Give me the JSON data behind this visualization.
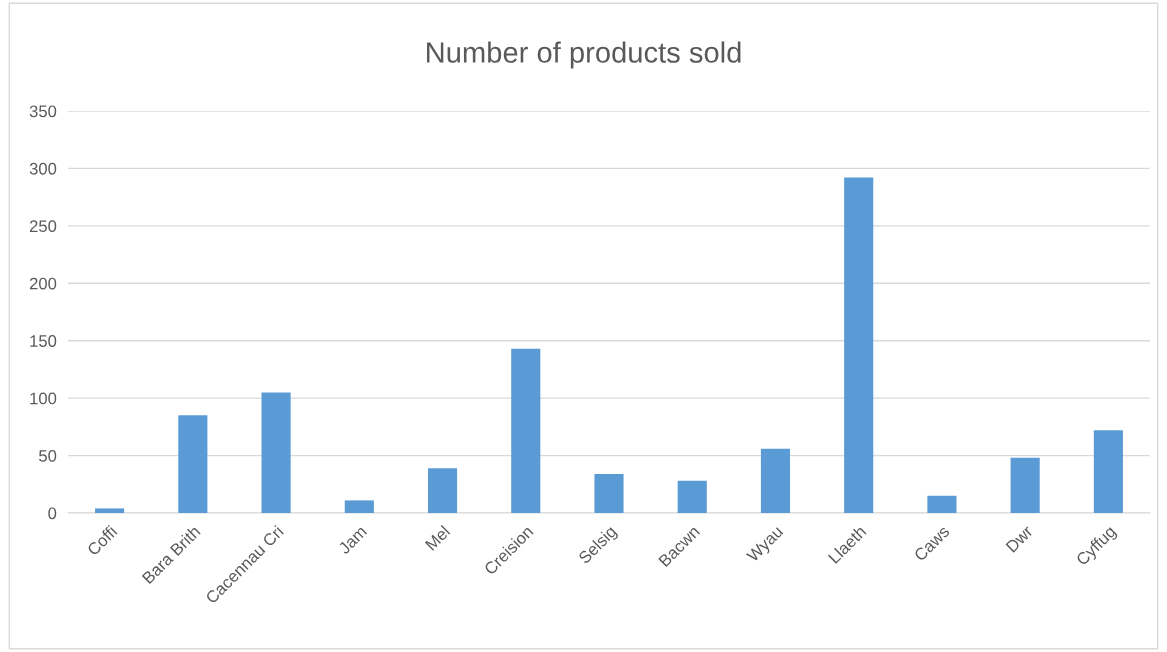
{
  "chart_data": {
    "type": "bar",
    "title": "Number of products sold",
    "categories": [
      "Coffi",
      "Bara Brith",
      "Cacennau Cri",
      "Jam",
      "Mel",
      "Creision",
      "Selsig",
      "Bacwn",
      "Wyau",
      "Llaeth",
      "Caws",
      "Dwr",
      "Cyffug"
    ],
    "values": [
      4,
      85,
      105,
      11,
      39,
      143,
      34,
      28,
      56,
      292,
      15,
      48,
      72
    ],
    "color": "#5b9bd5",
    "ylim": [
      0,
      350
    ],
    "yticks": [
      0,
      50,
      100,
      150,
      200,
      250,
      300,
      350
    ],
    "grid": "y"
  }
}
